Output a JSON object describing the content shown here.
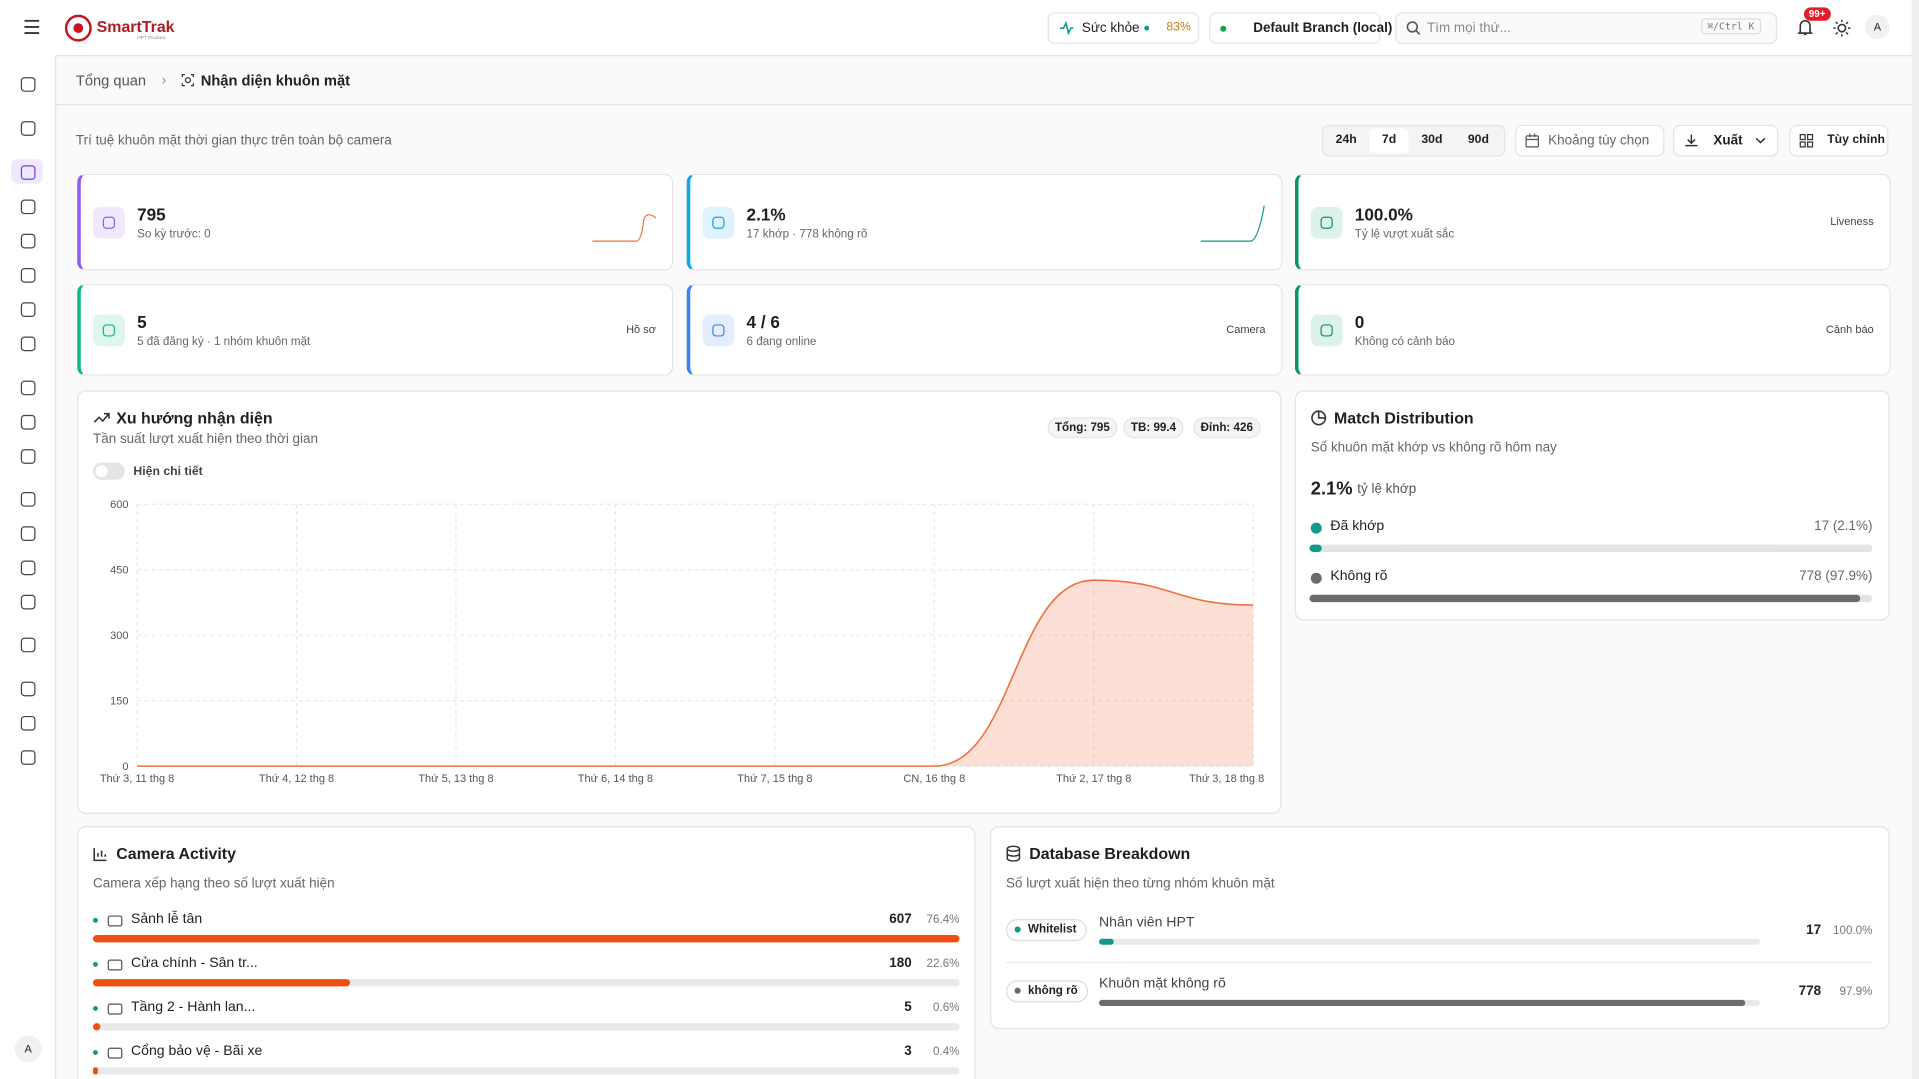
{
  "header": {
    "brand": "SmartTrak",
    "brand_sub": "HPT Product",
    "health_label": "Sức khỏe",
    "health_value": "83%",
    "branch": "Default Branch (local)",
    "search_placeholder": "Tìm mọi thứ...",
    "search_shortcut": "⌘/Ctrl K",
    "notifications": "99+",
    "avatar": "A"
  },
  "sidebar": {
    "avatar": "A"
  },
  "breadcrumb": {
    "home": "Tổng quan",
    "current": "Nhận diện khuôn mặt"
  },
  "page": {
    "subtitle": "Trí tuệ khuôn mặt thời gian thực trên toàn bộ camera",
    "ranges": [
      "24h",
      "7d",
      "30d",
      "90d"
    ],
    "custom_range": "Khoảng tùy chọn",
    "export": "Xuất",
    "customize": "Tùy chỉnh"
  },
  "stats": [
    {
      "value": "795",
      "sub": "So kỳ trước: 0"
    },
    {
      "value": "2.1%",
      "sub": "17 khớp · 778 không rõ"
    },
    {
      "value": "100.0%",
      "sub": "Tỷ lệ vượt xuất sắc",
      "tag": "Liveness"
    },
    {
      "value": "5",
      "sub": "5 đã đăng ký · 1 nhóm khuôn mặt",
      "tag": "Hồ sơ"
    },
    {
      "value": "4 / 6",
      "sub": "6 đang online",
      "tag": "Camera"
    },
    {
      "value": "0",
      "sub": "Không có cảnh báo",
      "tag": "Cảnh báo"
    }
  ],
  "trend": {
    "title": "Xu hướng nhận diện",
    "subtitle": "Tần suất lượt xuất hiện theo thời gian",
    "toggle": "Hiện chi tiết",
    "badges": [
      "Tổng: 795",
      "TB: 99.4",
      "Đỉnh: 426"
    ],
    "chart_data": {
      "type": "area",
      "x": [
        "Thứ 3, 11 thg 8",
        "Thứ 4, 12 thg 8",
        "Thứ 5, 13 thg 8",
        "Thứ 6, 14 thg 8",
        "Thứ 7, 15 thg 8",
        "CN, 16 thg 8",
        "Thứ 2, 17 thg 8",
        "Thứ 3, 18 thg 8"
      ],
      "values": [
        0,
        0,
        0,
        0,
        0,
        0,
        426,
        369
      ],
      "ylim": [
        0,
        600
      ],
      "yticks": [
        0,
        150,
        300,
        450,
        600
      ],
      "color": "#f07040",
      "grid": true
    }
  },
  "match": {
    "title": "Match Distribution",
    "subtitle": "Số khuôn mặt khớp vs không rõ hôm nay",
    "rate": "2.1%",
    "rate_label": "tỷ lệ khớp",
    "items": [
      {
        "name": "Đã khớp",
        "value": 17,
        "percent": 2.1,
        "value_label": "17 (2.1%)",
        "color": "#0f9a8a"
      },
      {
        "name": "Không rõ",
        "value": 778,
        "percent": 97.9,
        "value_label": "778 (97.9%)",
        "color": "#6b6b6b"
      }
    ]
  },
  "cameras": {
    "title": "Camera Activity",
    "subtitle": "Camera xếp hạng theo số lượt xuất hiện",
    "color": "#f04e0f",
    "items": [
      {
        "name": "Sảnh lễ tân",
        "count": 607,
        "percent": 76.4,
        "percent_label": "76.4%"
      },
      {
        "name": "Cửa chính - Sân tr...",
        "count": 180,
        "percent": 22.6,
        "percent_label": "22.6%"
      },
      {
        "name": "Tầng 2 - Hành lan...",
        "count": 5,
        "percent": 0.6,
        "percent_label": "0.6%"
      },
      {
        "name": "Cổng bảo vệ - Bãi xe",
        "count": 3,
        "percent": 0.4,
        "percent_label": "0.4%"
      }
    ]
  },
  "database": {
    "title": "Database Breakdown",
    "subtitle": "Số lượt xuất hiện theo từng nhóm khuôn mặt",
    "items": [
      {
        "tag": "Whitelist",
        "name": "Nhân viên HPT",
        "count": 17,
        "percent": 100.0,
        "percent_label": "100.0%",
        "color": "#0f9a8a"
      },
      {
        "tag": "không rõ",
        "name": "Khuôn mặt không rõ",
        "count": 778,
        "percent": 97.9,
        "percent_label": "97.9%",
        "color": "#6b6b6b"
      }
    ]
  }
}
